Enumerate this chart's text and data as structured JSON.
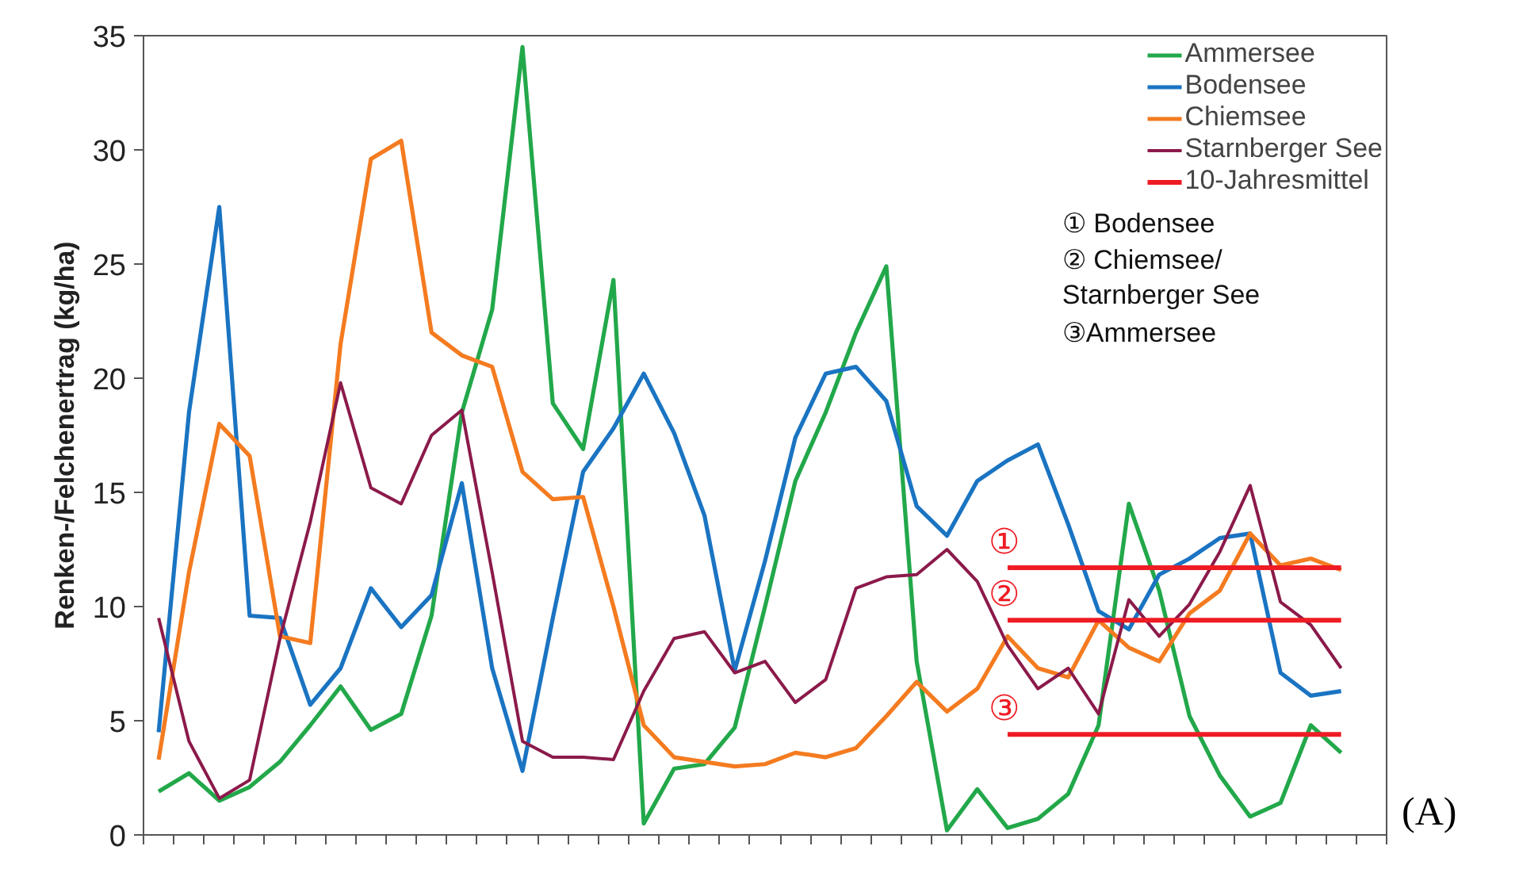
{
  "chart_data": {
    "type": "line",
    "ylabel": "Renken-/Felchenertrag (kg/ha)",
    "categories": [
      null,
      null,
      null,
      null,
      null,
      null,
      null,
      null,
      null,
      null,
      null,
      null,
      null,
      null,
      null,
      null,
      null,
      null,
      null,
      null,
      null,
      null,
      null,
      null,
      null,
      null,
      null,
      null,
      null,
      null,
      null,
      null,
      null,
      null,
      null,
      null,
      null,
      null,
      null,
      null
    ],
    "ylim": [
      0,
      35
    ],
    "yticks": [
      0,
      5,
      10,
      15,
      20,
      25,
      30,
      35
    ],
    "grid": false,
    "legend": "top right",
    "marker": "none",
    "line_style": "solid",
    "series": [
      {
        "name": "Ammersee",
        "color": "#22a84a",
        "values": [
          1.9,
          2.7,
          1.5,
          2.1,
          3.2,
          4.8,
          6.5,
          4.6,
          5.3,
          9.6,
          18.5,
          23,
          34.5,
          18.9,
          16.9,
          24.3,
          0.5,
          2.9,
          3.1,
          4.7,
          10,
          15.5,
          18.5,
          22,
          24.9,
          7.6,
          0.2,
          2,
          0.3,
          0.7,
          1.8,
          4.8,
          14.5,
          10.7,
          5.2,
          2.6,
          0.8,
          1.4,
          4.8,
          3.6
        ]
      },
      {
        "name": "Bodensee",
        "color": "#1a74c2",
        "values": [
          4.5,
          18.5,
          27.5,
          9.6,
          9.5,
          5.7,
          7.3,
          10.8,
          9.1,
          10.5,
          15.4,
          7.3,
          2.8,
          9.5,
          15.9,
          17.8,
          20.2,
          17.6,
          14,
          7.2,
          12,
          17.4,
          20.2,
          20.5,
          19,
          14.4,
          13.1,
          15.5,
          16.4,
          17.1,
          13.6,
          9.8,
          9,
          11.4,
          12.1,
          13,
          13.2,
          7.1,
          6.1,
          6.3
        ]
      },
      {
        "name": "Chiemsee",
        "color": "#f47b20",
        "values": [
          3.3,
          11.5,
          18,
          16.6,
          8.7,
          8.4,
          21.5,
          29.6,
          30.4,
          22,
          21,
          20.5,
          15.9,
          14.7,
          14.8,
          10,
          4.8,
          3.4,
          3.2,
          3,
          3.1,
          3.6,
          3.4,
          3.8,
          5.2,
          6.7,
          5.4,
          6.4,
          8.7,
          7.3,
          6.9,
          9.4,
          8.2,
          7.6,
          9.7,
          10.7,
          13.2,
          11.8,
          12.1,
          11.6
        ]
      },
      {
        "name": "Starnberger See",
        "color": "#8b1a4a",
        "values": [
          9.5,
          4.1,
          1.6,
          2.4,
          8.6,
          13.7,
          19.8,
          15.2,
          14.5,
          17.5,
          18.6,
          11.5,
          4.1,
          3.4,
          3.4,
          3.3,
          6.3,
          8.6,
          8.9,
          7.1,
          7.6,
          5.8,
          6.8,
          10.8,
          11.3,
          11.4,
          12.5,
          11.1,
          8.3,
          6.4,
          7.3,
          5.3,
          10.3,
          8.7,
          10.1,
          12.4,
          15.3,
          10.2,
          9.2,
          7.3
        ]
      },
      {
        "name": "10-Jahresmittel",
        "color": "#ee1c24",
        "values": [
          null,
          null,
          null,
          null,
          null,
          null,
          null,
          null,
          null,
          null,
          null,
          null,
          null,
          null,
          null,
          null,
          null,
          null,
          null,
          null,
          null,
          null,
          null,
          null,
          null,
          null,
          null,
          null,
          11.7,
          11.7,
          11.7,
          11.7,
          11.7,
          11.7,
          11.7,
          11.7,
          11.7,
          11.7,
          11.7,
          11.7
        ]
      },
      {
        "color": "#ee1c24",
        "values": [
          null,
          null,
          null,
          null,
          null,
          null,
          null,
          null,
          null,
          null,
          null,
          null,
          null,
          null,
          null,
          null,
          null,
          null,
          null,
          null,
          null,
          null,
          null,
          null,
          null,
          null,
          null,
          null,
          9.4,
          9.4,
          9.4,
          9.4,
          9.4,
          9.4,
          9.4,
          9.4,
          9.4,
          9.4,
          9.4,
          9.4
        ]
      },
      {
        "color": "#ee1c24",
        "values": [
          null,
          null,
          null,
          null,
          null,
          null,
          null,
          null,
          null,
          null,
          null,
          null,
          null,
          null,
          null,
          null,
          null,
          null,
          null,
          null,
          null,
          null,
          null,
          null,
          null,
          null,
          null,
          null,
          4.4,
          4.4,
          4.4,
          4.4,
          4.4,
          4.4,
          4.4,
          4.4,
          4.4,
          4.4,
          4.4,
          4.4
        ]
      }
    ],
    "annotations": [
      {
        "text": "①",
        "y": 11.7
      },
      {
        "text": "②",
        "y": 9.4
      },
      {
        "text": "③",
        "y": 4.4
      },
      "① Bodensee",
      "② Chiemsee/\n    Starnberger See",
      "③Ammersee",
      "(A)"
    ]
  }
}
